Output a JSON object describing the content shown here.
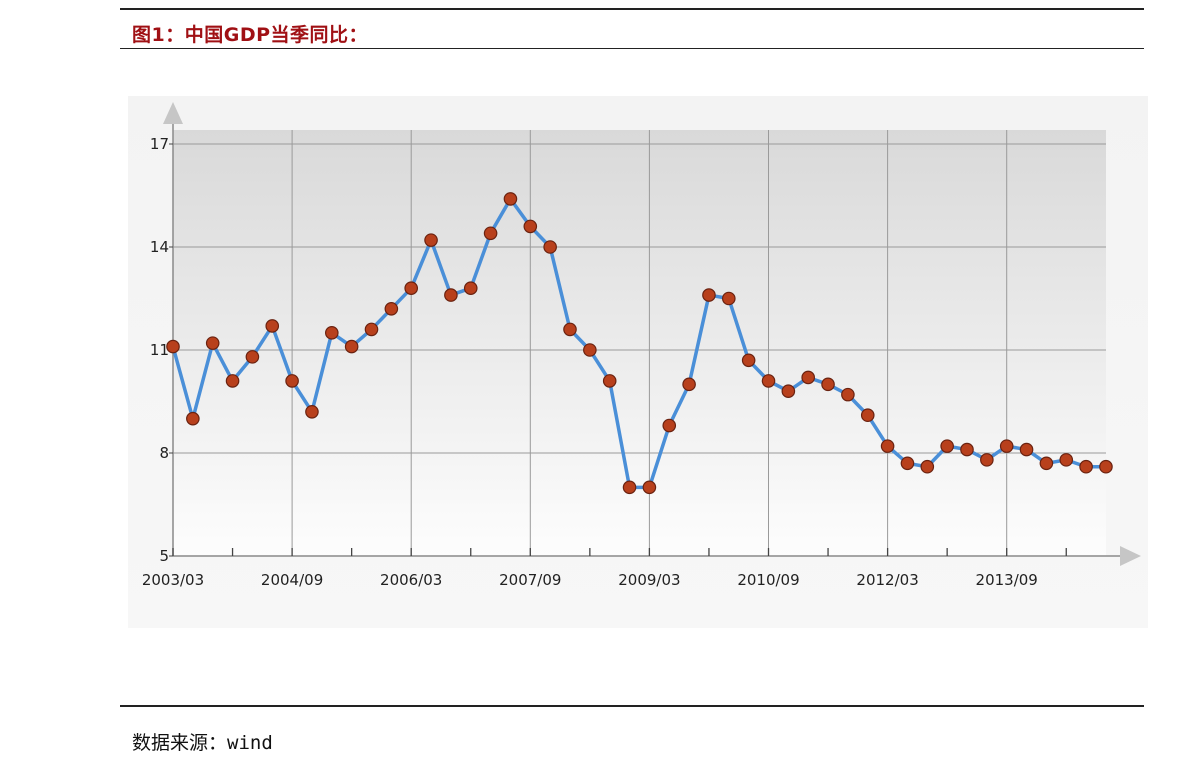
{
  "header": {
    "title": "图1：中国GDP当季同比："
  },
  "footer": {
    "source": "数据来源：wind"
  },
  "chart_data": {
    "type": "line",
    "title": "",
    "xlabel": "",
    "ylabel": "",
    "ylim": [
      5,
      17
    ],
    "yticks": [
      5,
      8,
      11,
      14,
      17
    ],
    "xtick_labels": [
      "2003/03",
      "2004/09",
      "2006/03",
      "2007/09",
      "2009/03",
      "2010/09",
      "2012/03",
      "2013/09"
    ],
    "grid": true,
    "colors": {
      "line": "#4a8fd8",
      "marker": "#b8401c",
      "marker_edge": "#6a2210"
    },
    "x": [
      "2003/03",
      "2003/06",
      "2003/09",
      "2003/12",
      "2004/03",
      "2004/06",
      "2004/09",
      "2004/12",
      "2005/03",
      "2005/06",
      "2005/09",
      "2005/12",
      "2006/03",
      "2006/06",
      "2006/09",
      "2006/12",
      "2007/03",
      "2007/06",
      "2007/09",
      "2007/12",
      "2008/03",
      "2008/06",
      "2008/09",
      "2008/12",
      "2009/03",
      "2009/06",
      "2009/09",
      "2009/12",
      "2010/03",
      "2010/06",
      "2010/09",
      "2010/12",
      "2011/03",
      "2011/06",
      "2011/09",
      "2011/12",
      "2012/03",
      "2012/06",
      "2012/09",
      "2012/12",
      "2013/03",
      "2013/06",
      "2013/09",
      "2013/12",
      "2014/03",
      "2014/06",
      "2014/09",
      "2014/12"
    ],
    "series": [
      {
        "values": [
          11.1,
          9.0,
          11.2,
          10.1,
          10.8,
          11.7,
          10.1,
          9.2,
          11.5,
          11.1,
          11.6,
          12.2,
          12.8,
          14.2,
          12.6,
          12.8,
          14.4,
          15.4,
          14.6,
          14.0,
          11.6,
          11.0,
          10.1,
          7.0,
          7.0,
          8.8,
          10.0,
          12.6,
          12.5,
          10.7,
          10.1,
          9.8,
          10.2,
          10.0,
          9.7,
          9.1,
          8.2,
          7.7,
          7.6,
          8.2,
          8.1,
          7.8,
          8.2,
          8.1,
          7.7,
          7.8,
          7.6,
          7.6
        ]
      }
    ]
  }
}
